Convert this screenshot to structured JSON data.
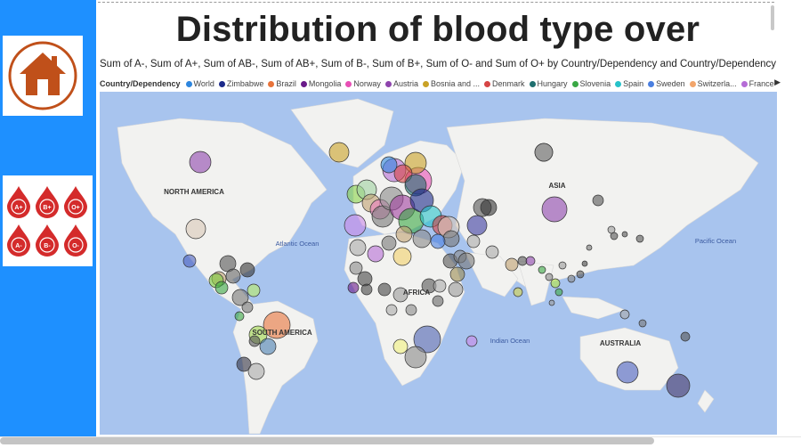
{
  "report": {
    "title": "Distribution of blood type over",
    "subtitle": "Sum of A-, Sum of A+, Sum of AB-, Sum of AB+, Sum of B-, Sum of B+, Sum of O- and Sum of O+ by Country/Dependency and Country/Dependency"
  },
  "sidebar": {
    "home_icon": "home-icon",
    "blood_type_labels": [
      "A+",
      "B+",
      "O+",
      "A-",
      "B-",
      "O-"
    ],
    "blood_drop_color": "#d42b2b",
    "home_color": "#c0501a"
  },
  "legend": {
    "title": "Country/Dependency",
    "items": [
      {
        "label": "World",
        "color": "#2e86de"
      },
      {
        "label": "Zimbabwe",
        "color": "#1b2a8a"
      },
      {
        "label": "Brazil",
        "color": "#e8733a"
      },
      {
        "label": "Mongolia",
        "color": "#6a1b8a"
      },
      {
        "label": "Norway",
        "color": "#e84fb5"
      },
      {
        "label": "Austria",
        "color": "#8e44ad"
      },
      {
        "label": "Bosnia and ...",
        "color": "#c9a227"
      },
      {
        "label": "Denmark",
        "color": "#d64545"
      },
      {
        "label": "Hungary",
        "color": "#1f6f6f"
      },
      {
        "label": "Slovenia",
        "color": "#3aa845"
      },
      {
        "label": "Spain",
        "color": "#27c2c9"
      },
      {
        "label": "Sweden",
        "color": "#4a7fe0"
      },
      {
        "label": "Switzerla...",
        "color": "#f2a56b"
      },
      {
        "label": "France",
        "color": "#b56cd6"
      }
    ],
    "more_arrow": "▶"
  },
  "map": {
    "ocean_color": "#a8c4ee",
    "land_color": "#f2f2f0",
    "continent_labels": {
      "north_america": "NORTH AMERICA",
      "south_america": "SOUTH AMERICA",
      "asia": "ASIA",
      "africa": "AFRICA",
      "australia": "AUSTRALIA"
    },
    "ocean_labels": {
      "atlantic": "Atlantic Ocean",
      "pacific": "Pacific Ocean",
      "indian": "Indian Ocean"
    }
  }
}
